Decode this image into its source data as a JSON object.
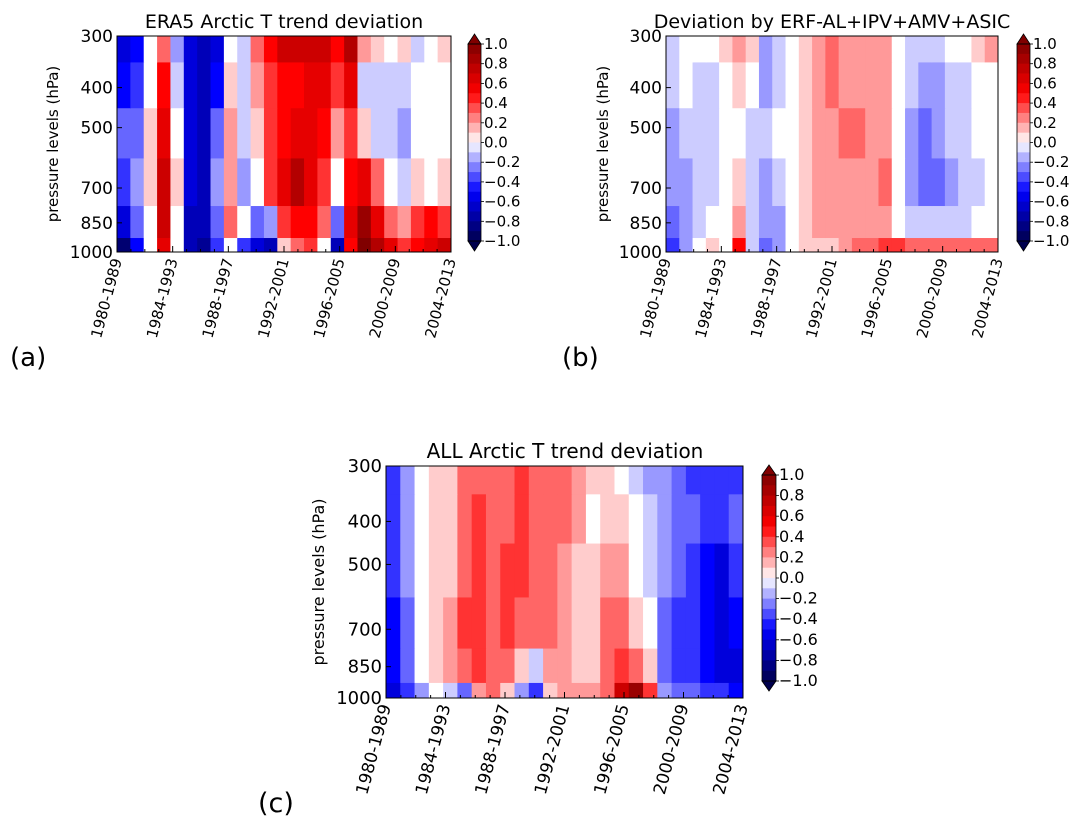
{
  "figure": {
    "panel_labels": [
      "(a)",
      "(b)",
      "(c)"
    ]
  },
  "chart_data": [
    {
      "type": "heatmap",
      "title": "ERA5 Arctic T trend deviation",
      "ylabel": "pressure levels (hPa)",
      "xlabel": "",
      "x_ticks": [
        "1980-1989",
        "1984-1993",
        "1988-1997",
        "1992-2001",
        "1996-2005",
        "2000-2009",
        "2004-2013"
      ],
      "y_ticks": [
        "300",
        "400",
        "500",
        "700",
        "850",
        "1000"
      ],
      "y_levels_hPa": [
        1000,
        850,
        700,
        500,
        400,
        300
      ],
      "y_scale": "log",
      "x_windows": [
        "1980-1989",
        "1981-1990",
        "1982-1991",
        "1983-1992",
        "1984-1993",
        "1985-1994",
        "1986-1995",
        "1987-1996",
        "1988-1997",
        "1989-1998",
        "1990-1999",
        "1991-2000",
        "1992-2001",
        "1993-2002",
        "1994-2003",
        "1995-2004",
        "1996-2005",
        "1997-2006",
        "1998-2007",
        "1999-2008",
        "2000-2009",
        "2001-2010",
        "2002-2011",
        "2003-2012",
        "2004-2013"
      ],
      "colorbar": {
        "min": -1.0,
        "max": 1.0,
        "step": 0.1,
        "ticks": [
          "1.0",
          "0.8",
          "0.6",
          "0.4",
          "0.2",
          "0.0",
          "−0.2",
          "−0.4",
          "−0.6",
          "−0.8",
          "−1.0"
        ],
        "colormap": "seismic",
        "extend": "both"
      },
      "values": [
        [
          -0.9,
          -0.5,
          0.0,
          0.6,
          0.0,
          -0.7,
          -0.8,
          -0.4,
          0.0,
          -0.4,
          -0.6,
          -0.7,
          0.1,
          0.3,
          0.4,
          0.0,
          -0.7,
          0.5,
          1.0,
          0.8,
          0.6,
          0.4,
          0.5,
          0.6,
          0.7
        ],
        [
          -0.6,
          -0.3,
          0.0,
          0.7,
          0.0,
          -0.7,
          -0.7,
          -0.3,
          0.3,
          0.0,
          -0.3,
          -0.2,
          0.4,
          0.5,
          0.5,
          0.3,
          -0.3,
          0.6,
          0.9,
          0.6,
          0.3,
          0.2,
          0.4,
          0.5,
          0.4
        ],
        [
          -0.4,
          -0.2,
          0.1,
          0.7,
          0.1,
          -0.6,
          -0.7,
          -0.2,
          0.2,
          -0.2,
          0.0,
          0.4,
          0.6,
          0.8,
          0.6,
          0.4,
          0.0,
          0.5,
          0.6,
          0.3,
          0.0,
          -0.1,
          0.1,
          0.0,
          0.1
        ],
        [
          -0.3,
          -0.3,
          0.1,
          0.6,
          0.0,
          -0.6,
          -0.7,
          -0.3,
          0.2,
          -0.1,
          0.1,
          0.4,
          0.5,
          0.6,
          0.6,
          0.5,
          0.2,
          0.4,
          0.1,
          -0.1,
          -0.1,
          -0.2,
          0.0,
          0.0,
          0.0
        ],
        [
          -0.5,
          -0.4,
          0.0,
          0.5,
          -0.1,
          -0.6,
          -0.7,
          -0.5,
          0.1,
          -0.1,
          0.2,
          0.4,
          0.5,
          0.5,
          0.6,
          0.6,
          0.4,
          0.6,
          -0.1,
          -0.1,
          -0.1,
          -0.1,
          0.0,
          0.0,
          0.0
        ],
        [
          -0.6,
          -0.5,
          0.0,
          0.3,
          -0.2,
          -0.6,
          -0.7,
          -0.6,
          0.0,
          -0.1,
          0.3,
          0.5,
          0.7,
          0.7,
          0.7,
          0.7,
          0.5,
          0.8,
          0.2,
          0.1,
          0.0,
          0.1,
          -0.1,
          0.0,
          0.1
        ]
      ]
    },
    {
      "type": "heatmap",
      "title": "Deviation by ERF-AL+IPV+AMV+ASIC",
      "ylabel": "pressure levels (hPa)",
      "xlabel": "",
      "x_ticks": [
        "1980-1989",
        "1984-1993",
        "1988-1997",
        "1992-2001",
        "1996-2005",
        "2000-2009",
        "2004-2013"
      ],
      "y_ticks": [
        "300",
        "400",
        "500",
        "700",
        "850",
        "1000"
      ],
      "y_levels_hPa": [
        1000,
        850,
        700,
        500,
        400,
        300
      ],
      "y_scale": "log",
      "x_windows": [
        "1980-1989",
        "1981-1990",
        "1982-1991",
        "1983-1992",
        "1984-1993",
        "1985-1994",
        "1986-1995",
        "1987-1996",
        "1988-1997",
        "1989-1998",
        "1990-1999",
        "1991-2000",
        "1992-2001",
        "1993-2002",
        "1994-2003",
        "1995-2004",
        "1996-2005",
        "1997-2006",
        "1998-2007",
        "1999-2008",
        "2000-2009",
        "2001-2010",
        "2002-2011",
        "2003-2012",
        "2004-2013"
      ],
      "colorbar": {
        "min": -1.0,
        "max": 1.0,
        "step": 0.1,
        "ticks": [
          "1.0",
          "0.8",
          "0.6",
          "0.4",
          "0.2",
          "0.0",
          "−0.2",
          "−0.4",
          "−0.6",
          "−0.8",
          "−1.0"
        ],
        "colormap": "seismic",
        "extend": "both"
      },
      "values": [
        [
          -0.4,
          -0.2,
          0.0,
          0.1,
          0.0,
          0.5,
          -0.1,
          -0.3,
          -0.2,
          0.0,
          0.1,
          0.1,
          0.1,
          0.2,
          0.3,
          0.3,
          0.4,
          0.4,
          0.3,
          0.3,
          0.3,
          0.3,
          0.3,
          0.3,
          0.3
        ],
        [
          -0.3,
          -0.2,
          -0.1,
          0.0,
          0.0,
          0.2,
          -0.1,
          -0.2,
          -0.2,
          0.0,
          0.1,
          0.2,
          0.2,
          0.2,
          0.2,
          0.2,
          0.2,
          0.0,
          -0.1,
          -0.1,
          -0.1,
          -0.1,
          -0.1,
          0.0,
          0.0
        ],
        [
          -0.2,
          -0.2,
          -0.1,
          -0.1,
          0.0,
          0.1,
          -0.1,
          -0.2,
          -0.1,
          0.0,
          0.1,
          0.2,
          0.2,
          0.2,
          0.2,
          0.2,
          0.3,
          0.0,
          -0.2,
          -0.3,
          -0.3,
          -0.2,
          -0.1,
          -0.1,
          0.0
        ],
        [
          -0.2,
          -0.1,
          -0.1,
          -0.1,
          0.0,
          0.0,
          -0.1,
          -0.1,
          0.0,
          0.0,
          0.1,
          0.2,
          0.2,
          0.3,
          0.3,
          0.2,
          0.2,
          0.0,
          -0.2,
          -0.3,
          -0.2,
          -0.1,
          -0.1,
          0.0,
          0.0
        ],
        [
          -0.1,
          0.0,
          -0.1,
          -0.1,
          0.0,
          0.1,
          0.0,
          -0.2,
          -0.1,
          0.0,
          0.1,
          0.2,
          0.3,
          0.2,
          0.2,
          0.2,
          0.2,
          0.0,
          -0.1,
          -0.2,
          -0.2,
          -0.1,
          -0.1,
          0.0,
          0.0
        ],
        [
          -0.1,
          0.0,
          0.0,
          0.0,
          0.1,
          0.2,
          0.1,
          -0.2,
          -0.1,
          0.0,
          0.1,
          0.2,
          0.3,
          0.2,
          0.2,
          0.2,
          0.2,
          0.0,
          -0.1,
          -0.1,
          -0.1,
          0.0,
          0.0,
          0.1,
          0.2
        ]
      ]
    },
    {
      "type": "heatmap",
      "title": "ALL Arctic T trend deviation",
      "ylabel": "pressure levels (hPa)",
      "xlabel": "",
      "x_ticks": [
        "1980-1989",
        "1984-1993",
        "1988-1997",
        "1992-2001",
        "1996-2005",
        "2000-2009",
        "2004-2013"
      ],
      "y_ticks": [
        "300",
        "400",
        "500",
        "700",
        "850",
        "1000"
      ],
      "y_levels_hPa": [
        1000,
        850,
        700,
        500,
        400,
        300
      ],
      "y_scale": "log",
      "x_windows": [
        "1980-1989",
        "1981-1990",
        "1982-1991",
        "1983-1992",
        "1984-1993",
        "1985-1994",
        "1986-1995",
        "1987-1996",
        "1988-1997",
        "1989-1998",
        "1990-1999",
        "1991-2000",
        "1992-2001",
        "1993-2002",
        "1994-2003",
        "1995-2004",
        "1996-2005",
        "1997-2006",
        "1998-2007",
        "1999-2008",
        "2000-2009",
        "2001-2010",
        "2002-2011",
        "2003-2012",
        "2004-2013"
      ],
      "colorbar": {
        "min": -1.0,
        "max": 1.0,
        "step": 0.1,
        "ticks": [
          "1.0",
          "0.8",
          "0.6",
          "0.4",
          "0.2",
          "0.0",
          "−0.2",
          "−0.4",
          "−0.6",
          "−0.8",
          "−1.0"
        ],
        "colormap": "seismic",
        "extend": "both"
      },
      "values": [
        [
          -0.6,
          -0.4,
          -0.2,
          0.0,
          -0.1,
          -0.3,
          0.2,
          0.3,
          0.1,
          -0.2,
          -0.4,
          0.1,
          0.2,
          0.2,
          0.2,
          0.3,
          0.7,
          0.9,
          0.4,
          -0.2,
          -0.3,
          -0.3,
          -0.4,
          -0.4,
          -0.5
        ],
        [
          -0.5,
          -0.3,
          0.0,
          0.1,
          0.2,
          0.3,
          0.4,
          0.3,
          0.3,
          0.1,
          -0.1,
          0.2,
          0.2,
          0.1,
          0.1,
          0.3,
          0.4,
          0.3,
          0.1,
          -0.3,
          -0.4,
          -0.4,
          -0.5,
          -0.6,
          -0.6
        ],
        [
          -0.5,
          -0.3,
          0.0,
          0.1,
          0.2,
          0.4,
          0.4,
          0.3,
          0.4,
          0.3,
          0.3,
          0.3,
          0.2,
          0.1,
          0.1,
          0.3,
          0.3,
          0.1,
          0.0,
          -0.3,
          -0.4,
          -0.4,
          -0.5,
          -0.6,
          -0.5
        ],
        [
          -0.4,
          -0.2,
          0.0,
          0.1,
          0.1,
          0.3,
          0.4,
          0.3,
          0.4,
          0.4,
          0.3,
          0.3,
          0.2,
          0.1,
          0.1,
          0.2,
          0.2,
          0.0,
          -0.1,
          -0.2,
          -0.3,
          -0.4,
          -0.5,
          -0.6,
          -0.4
        ],
        [
          -0.4,
          -0.2,
          0.0,
          0.1,
          0.1,
          0.3,
          0.4,
          0.3,
          0.3,
          0.4,
          0.3,
          0.3,
          0.3,
          0.2,
          0.0,
          0.1,
          0.1,
          0.0,
          -0.1,
          -0.2,
          -0.3,
          -0.3,
          -0.4,
          -0.4,
          -0.3
        ],
        [
          -0.4,
          -0.2,
          0.0,
          0.1,
          0.1,
          0.3,
          0.3,
          0.3,
          0.3,
          0.4,
          0.3,
          0.3,
          0.3,
          0.2,
          0.1,
          0.1,
          0.0,
          -0.1,
          -0.2,
          -0.2,
          -0.3,
          -0.4,
          -0.4,
          -0.4,
          -0.4
        ]
      ]
    }
  ]
}
